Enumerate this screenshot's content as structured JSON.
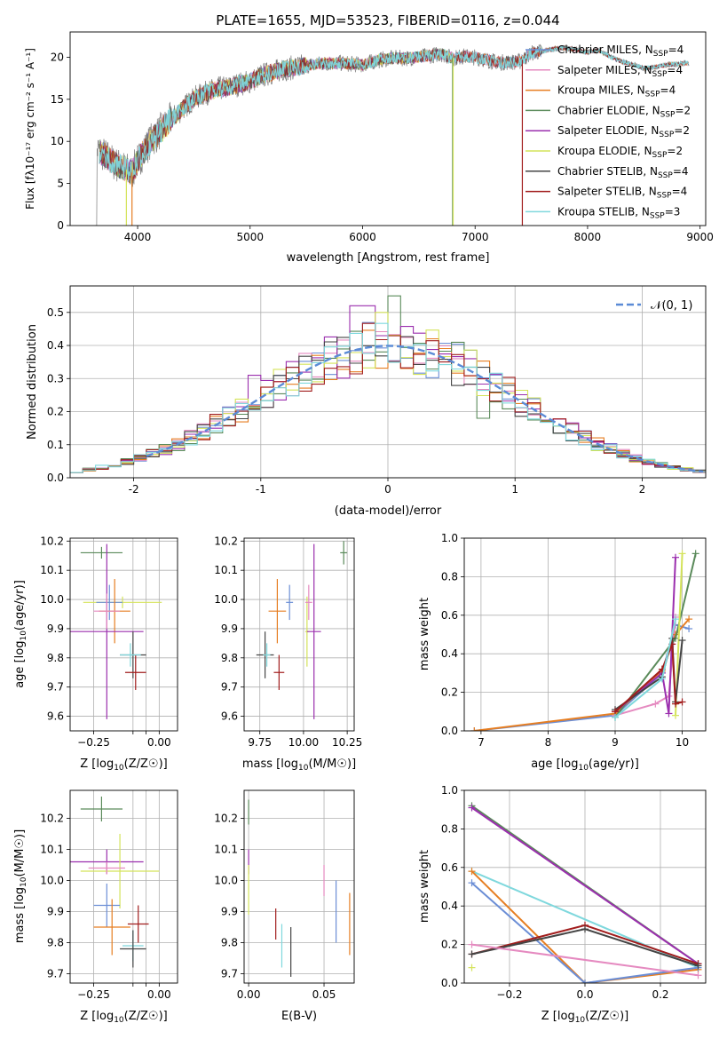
{
  "figure_title": "PLATE=1655, MJD=53523, FIBERID=0116, z=0.044",
  "palette": {
    "Chabrier MILES": "#6b8ed6",
    "Salpeter MILES": "#e58ac0",
    "Kroupa MILES": "#e67e22",
    "Chabrier ELODIE": "#5a8a5a",
    "Salpeter ELODIE": "#9b2fae",
    "Kroupa ELODIE": "#d4e35a",
    "Chabrier STELIB": "#444444",
    "Salpeter STELIB": "#a11d1d",
    "Kroupa STELIB": "#7fd8dd",
    "gaussian": "#5b8bd6",
    "grid": "#b0b0b0"
  },
  "chart_data": [
    {
      "id": "spectrum",
      "type": "line",
      "title": "PLATE=1655, MJD=53523, FIBERID=0116, z=0.044",
      "xlabel": "wavelength [Angstrom, rest frame]",
      "ylabel": "Flux [fλ10⁻¹⁷ erg cm⁻² s⁻¹ A⁻¹]",
      "xlim": [
        3400,
        9050
      ],
      "ylim": [
        0,
        23
      ],
      "xticks": [
        4000,
        5000,
        6000,
        7000,
        8000,
        9000
      ],
      "yticks": [
        0,
        5,
        10,
        15,
        20
      ],
      "grid": false,
      "legend_position": "right",
      "legend": [
        {
          "base": "Chabrier MILES, N",
          "sub": "SSP",
          "tail": "=4",
          "color": "#6b8ed6"
        },
        {
          "base": "Salpeter MILES, N",
          "sub": "SSP",
          "tail": "=4",
          "color": "#e58ac0"
        },
        {
          "base": "Kroupa MILES, N",
          "sub": "SSP",
          "tail": "=4",
          "color": "#e67e22"
        },
        {
          "base": "Chabrier ELODIE, N",
          "sub": "SSP",
          "tail": "=2",
          "color": "#5a8a5a"
        },
        {
          "base": "Salpeter ELODIE, N",
          "sub": "SSP",
          "tail": "=2",
          "color": "#9b2fae"
        },
        {
          "base": "Kroupa ELODIE, N",
          "sub": "SSP",
          "tail": "=2",
          "color": "#d4e35a"
        },
        {
          "base": "Chabrier STELIB, N",
          "sub": "SSP",
          "tail": "=4",
          "color": "#444444"
        },
        {
          "base": "Salpeter STELIB, N",
          "sub": "SSP",
          "tail": "=4",
          "color": "#a11d1d"
        },
        {
          "base": "Kroupa STELIB, N",
          "sub": "SSP",
          "tail": "=3",
          "color": "#7fd8dd"
        }
      ],
      "continuum": {
        "x": [
          3650,
          3720,
          3800,
          3880,
          3950,
          4000,
          4100,
          4200,
          4300,
          4400,
          4500,
          4600,
          4700,
          4800,
          4900,
          5000,
          5100,
          5200,
          5300,
          5400,
          5500,
          5600,
          5700,
          5800,
          5900,
          6000,
          6100,
          6200,
          6300,
          6400,
          6500,
          6600,
          6700,
          6800,
          6900,
          7000,
          7100,
          7200,
          7300,
          7400,
          7500,
          7600,
          7700,
          7800,
          7900,
          8000,
          8100,
          8200,
          8300,
          8400,
          8500,
          8600,
          8700,
          8800,
          8900
        ],
        "y": [
          9.0,
          8.2,
          7.3,
          6.8,
          6.3,
          7.6,
          9.8,
          11.2,
          12.6,
          13.9,
          15.1,
          15.7,
          16.2,
          16.4,
          16.8,
          17.1,
          17.8,
          18.2,
          18.6,
          18.8,
          19.0,
          19.2,
          19.3,
          19.3,
          19.2,
          19.1,
          19.5,
          19.8,
          19.9,
          19.9,
          20.0,
          20.2,
          20.4,
          19.9,
          20.1,
          20.0,
          19.7,
          19.4,
          19.4,
          19.5,
          20.5,
          20.7,
          21.0,
          21.1,
          20.9,
          20.6,
          20.8,
          20.1,
          19.5,
          19.1,
          18.7,
          18.8,
          19.1,
          19.2,
          19.3
        ]
      },
      "dropouts": [
        {
          "series": "Kroupa MILES",
          "wavelength": 3950
        },
        {
          "series": "Kroupa ELODIE",
          "wavelength": 3900
        },
        {
          "series": "Chabrier ELODIE",
          "wavelength": 6800
        },
        {
          "series": "Kroupa ELODIE",
          "wavelength": 6805
        },
        {
          "series": "Salpeter STELIB",
          "wavelength": 7420
        }
      ]
    },
    {
      "id": "residuals",
      "type": "line",
      "xlabel": "(data-model)/error",
      "ylabel": "Normed distribution",
      "xlim": [
        -2.5,
        2.5
      ],
      "ylim": [
        0,
        0.58
      ],
      "xticks": [
        -2,
        -1,
        0,
        1,
        2
      ],
      "yticks": [
        0.0,
        0.1,
        0.2,
        0.3,
        0.4,
        0.5
      ],
      "grid": true,
      "legend_position": "top-right",
      "legend": [
        {
          "label": "𝒩(0, 1)",
          "style": "dashed",
          "color": "#5b8bd6"
        }
      ],
      "bins": {
        "start": -2.5,
        "width": 0.1,
        "count": 50
      },
      "highlights": [
        {
          "series": "Salpeter ELODIE",
          "x": -0.2,
          "value": 0.52
        },
        {
          "series": "Chabrier ELODIE",
          "x": 0.05,
          "value": 0.55
        },
        {
          "series": "Kroupa ELODIE",
          "x": -0.05,
          "value": 0.5
        },
        {
          "series": "Salpeter ELODIE",
          "x": -1.05,
          "value": 0.31
        },
        {
          "series": "Chabrier ELODIE",
          "x": 0.75,
          "value": 0.18
        },
        {
          "series": "Salpeter ELODIE",
          "x": 1.25,
          "value": 0.17
        }
      ]
    },
    {
      "id": "age-vs-Z",
      "type": "scatter",
      "xlabel_base": "Z [log",
      "xlabel_sub": "10",
      "xlabel_tail": "(Z/Z☉)]",
      "ylabel_base": "age  [log",
      "ylabel_sub": "10",
      "ylabel_tail": "(age/yr)]",
      "xlim": [
        -0.34,
        0.07
      ],
      "ylim": [
        9.55,
        10.21
      ],
      "xticks": [
        "-0.25",
        "-0.10",
        "-0.05",
        "0.00"
      ],
      "xtick_values": [
        -0.25,
        -0.1,
        -0.05,
        0.0
      ],
      "xtick_labels": [
        "−0.25",
        "",
        "",
        "0.00"
      ],
      "yticks": [
        9.6,
        9.7,
        9.8,
        9.9,
        10.0,
        10.1,
        10.2
      ],
      "grid": true,
      "points": [
        {
          "series": "Chabrier ELODIE",
          "x": -0.22,
          "y": 10.16,
          "xerr": 0.08,
          "yerr": 0.02
        },
        {
          "series": "Kroupa ELODIE",
          "x": -0.14,
          "y": 9.99,
          "xerr": 0.15,
          "yerr": 0.02
        },
        {
          "series": "Chabrier MILES",
          "x": -0.19,
          "y": 9.99,
          "xerr": 0.05,
          "yerr": 0.06
        },
        {
          "series": "Kroupa MILES",
          "x": -0.17,
          "y": 9.96,
          "xerr": 0.06,
          "yerr": 0.11
        },
        {
          "series": "Salpeter ELODIE",
          "x": -0.2,
          "y": 9.89,
          "xerr": 0.14,
          "yerr": 0.3
        },
        {
          "series": "Chabrier STELIB",
          "x": -0.1,
          "y": 9.81,
          "xerr": 0.05,
          "yerr": 0.08
        },
        {
          "series": "Salpeter STELIB",
          "x": -0.09,
          "y": 9.75,
          "xerr": 0.04,
          "yerr": 0.06
        },
        {
          "series": "Kroupa STELIB",
          "x": -0.11,
          "y": 9.81,
          "xerr": 0.04,
          "yerr": 0.04
        },
        {
          "series": "Salpeter MILES",
          "x": -0.2,
          "y": 9.96,
          "xerr": 0.05,
          "yerr": 0.06
        }
      ]
    },
    {
      "id": "age-vs-mass",
      "type": "scatter",
      "xlabel_base": "mass [log",
      "xlabel_sub": "10",
      "xlabel_tail": "(M/M☉)]",
      "xlim": [
        9.66,
        10.29
      ],
      "ylim": [
        9.55,
        10.21
      ],
      "xticks": [
        9.75,
        10.0,
        10.25
      ],
      "xtick_labels": [
        "9.75",
        "10.00",
        "10.25"
      ],
      "yticks": [
        9.6,
        9.7,
        9.8,
        9.9,
        10.0,
        10.1,
        10.2
      ],
      "grid": true,
      "points": [
        {
          "series": "Chabrier ELODIE",
          "x": 10.23,
          "y": 10.16,
          "xerr": 0.02,
          "yerr": 0.04
        },
        {
          "series": "Kroupa ELODIE",
          "x": 10.02,
          "y": 9.89,
          "xerr": 0.01,
          "yerr": 0.12
        },
        {
          "series": "Chabrier MILES",
          "x": 9.92,
          "y": 9.99,
          "xerr": 0.02,
          "yerr": 0.06
        },
        {
          "series": "Kroupa MILES",
          "x": 9.85,
          "y": 9.96,
          "xerr": 0.05,
          "yerr": 0.11
        },
        {
          "series": "Salpeter ELODIE",
          "x": 10.06,
          "y": 9.89,
          "xerr": 0.04,
          "yerr": 0.3
        },
        {
          "series": "Chabrier STELIB",
          "x": 9.78,
          "y": 9.81,
          "xerr": 0.05,
          "yerr": 0.08
        },
        {
          "series": "Salpeter STELIB",
          "x": 9.86,
          "y": 9.75,
          "xerr": 0.03,
          "yerr": 0.06
        },
        {
          "series": "Kroupa STELIB",
          "x": 9.79,
          "y": 9.81,
          "xerr": 0.02,
          "yerr": 0.04
        },
        {
          "series": "Salpeter MILES",
          "x": 10.03,
          "y": 9.99,
          "xerr": 0.02,
          "yerr": 0.06
        }
      ]
    },
    {
      "id": "weight-vs-age",
      "type": "line",
      "xlabel_base": "age  [log",
      "xlabel_sub": "10",
      "xlabel_tail": "(age/yr)]",
      "ylabel": "mass weight",
      "xlim": [
        6.75,
        10.35
      ],
      "ylim": [
        0,
        1.0
      ],
      "xticks": [
        7,
        8,
        9,
        10
      ],
      "yticks": [
        0.0,
        0.2,
        0.4,
        0.6,
        0.8,
        1.0
      ],
      "grid": true,
      "series": [
        {
          "name": "Chabrier MILES",
          "x": [
            6.9,
            9.0,
            9.7,
            9.9,
            10.1
          ],
          "y": [
            0.0,
            0.08,
            0.3,
            0.55,
            0.53
          ]
        },
        {
          "name": "Salpeter MILES",
          "x": [
            9.0,
            9.6,
            9.8,
            9.9
          ],
          "y": [
            0.08,
            0.14,
            0.18,
            0.59
          ]
        },
        {
          "name": "Kroupa MILES",
          "x": [
            6.9,
            9.0,
            9.7,
            9.9,
            10.1
          ],
          "y": [
            0.0,
            0.09,
            0.31,
            0.5,
            0.58
          ]
        },
        {
          "name": "Chabrier ELODIE",
          "x": [
            9.0,
            9.9,
            10.2
          ],
          "y": [
            0.07,
            0.48,
            0.92
          ]
        },
        {
          "name": "Salpeter ELODIE",
          "x": [
            9.0,
            9.7,
            9.8,
            9.9
          ],
          "y": [
            0.1,
            0.3,
            0.09,
            0.9
          ]
        },
        {
          "name": "Kroupa ELODIE",
          "x": [
            9.9,
            10.0
          ],
          "y": [
            0.08,
            0.92
          ]
        },
        {
          "name": "Chabrier STELIB",
          "x": [
            9.0,
            9.7,
            9.85,
            9.9,
            10.0
          ],
          "y": [
            0.11,
            0.28,
            0.48,
            0.15,
            0.47
          ]
        },
        {
          "name": "Salpeter STELIB",
          "x": [
            9.0,
            9.7,
            9.85,
            9.9,
            10.0
          ],
          "y": [
            0.1,
            0.32,
            0.45,
            0.14,
            0.15
          ]
        },
        {
          "name": "Kroupa STELIB",
          "x": [
            9.0,
            9.7,
            9.9
          ],
          "y": [
            0.07,
            0.27,
            0.58
          ]
        }
      ]
    },
    {
      "id": "mass-vs-Z",
      "type": "scatter",
      "xlabel_base": "Z [log",
      "xlabel_sub": "10",
      "xlabel_tail": "(Z/Z☉)]",
      "ylabel_base": "mass [log",
      "ylabel_sub": "10",
      "ylabel_tail": "(M/M☉)]",
      "xlim": [
        -0.34,
        0.07
      ],
      "ylim": [
        9.67,
        10.29
      ],
      "xticks": [
        -0.25,
        -0.1,
        -0.05,
        0.0
      ],
      "xtick_labels": [
        "−0.25",
        "",
        "",
        "0.00"
      ],
      "yticks": [
        9.7,
        9.8,
        9.9,
        10.0,
        10.1,
        10.2
      ],
      "grid": true,
      "points": [
        {
          "series": "Chabrier ELODIE",
          "x": -0.22,
          "y": 10.23,
          "xerr": 0.08,
          "yerr": 0.04
        },
        {
          "series": "Salpeter ELODIE",
          "x": -0.2,
          "y": 10.06,
          "xerr": 0.14,
          "yerr": 0.04
        },
        {
          "series": "Kroupa ELODIE",
          "x": -0.15,
          "y": 10.03,
          "xerr": 0.15,
          "yerr": 0.12
        },
        {
          "series": "Salpeter MILES",
          "x": -0.2,
          "y": 10.04,
          "xerr": 0.07,
          "yerr": 0.02
        },
        {
          "series": "Chabrier MILES",
          "x": -0.2,
          "y": 9.92,
          "xerr": 0.05,
          "yerr": 0.07
        },
        {
          "series": "Salpeter STELIB",
          "x": -0.08,
          "y": 9.86,
          "xerr": 0.04,
          "yerr": 0.06
        },
        {
          "series": "Kroupa MILES",
          "x": -0.18,
          "y": 9.85,
          "xerr": 0.07,
          "yerr": 0.09
        },
        {
          "series": "Kroupa STELIB",
          "x": -0.1,
          "y": 9.79,
          "xerr": 0.04,
          "yerr": 0.05
        },
        {
          "series": "Chabrier STELIB",
          "x": -0.1,
          "y": 9.78,
          "xerr": 0.05,
          "yerr": 0.06
        }
      ]
    },
    {
      "id": "mass-vs-ebv",
      "type": "scatter",
      "xlabel": "E(B-V)",
      "xlim": [
        -0.003,
        0.07
      ],
      "ylim": [
        9.67,
        10.29
      ],
      "xticks": [
        0.0,
        0.05
      ],
      "xtick_labels": [
        "0.00",
        "0.05"
      ],
      "yticks": [
        9.7,
        9.8,
        9.9,
        10.0,
        10.1,
        10.2
      ],
      "grid": true,
      "points": [
        {
          "series": "Chabrier ELODIE",
          "x": 0.0,
          "y": 10.22,
          "xerr": 0.0,
          "yerr": 0.04
        },
        {
          "series": "Salpeter ELODIE",
          "x": 0.0,
          "y": 10.06,
          "xerr": 0.0,
          "yerr": 0.04
        },
        {
          "series": "Kroupa ELODIE",
          "x": 0.0,
          "y": 9.97,
          "xerr": 0.0,
          "yerr": 0.08
        },
        {
          "series": "Salpeter STELIB",
          "x": 0.018,
          "y": 9.86,
          "xerr": 0.0,
          "yerr": 0.05
        },
        {
          "series": "Kroupa STELIB",
          "x": 0.022,
          "y": 9.79,
          "xerr": 0.0,
          "yerr": 0.07
        },
        {
          "series": "Chabrier STELIB",
          "x": 0.028,
          "y": 9.77,
          "xerr": 0.0,
          "yerr": 0.08
        },
        {
          "series": "Salpeter MILES",
          "x": 0.05,
          "y": 10.0,
          "xerr": 0.0,
          "yerr": 0.05
        },
        {
          "series": "Chabrier MILES",
          "x": 0.058,
          "y": 9.9,
          "xerr": 0.0,
          "yerr": 0.1
        },
        {
          "series": "Kroupa MILES",
          "x": 0.067,
          "y": 9.86,
          "xerr": 0.0,
          "yerr": 0.1
        }
      ]
    },
    {
      "id": "weight-vs-Z",
      "type": "line",
      "xlabel_base": "Z [log",
      "xlabel_sub": "10",
      "xlabel_tail": "(Z/Z☉)]",
      "ylabel": "mass weight",
      "xlim": [
        -0.32,
        0.32
      ],
      "ylim": [
        0,
        1.0
      ],
      "xticks": [
        -0.2,
        0.0,
        0.2
      ],
      "xtick_labels": [
        "−0.2",
        "0.0",
        "0.2"
      ],
      "yticks": [
        0.0,
        0.2,
        0.4,
        0.6,
        0.8,
        1.0
      ],
      "grid": true,
      "series": [
        {
          "name": "Chabrier ELODIE",
          "x": [
            -0.3,
            0.3
          ],
          "y": [
            0.92,
            0.1
          ]
        },
        {
          "name": "Salpeter ELODIE",
          "x": [
            -0.3,
            0.3
          ],
          "y": [
            0.91,
            0.1
          ]
        },
        {
          "name": "Kroupa STELIB",
          "x": [
            -0.3,
            0.3
          ],
          "y": [
            0.58,
            0.08
          ]
        },
        {
          "name": "Kroupa MILES",
          "x": [
            -0.3,
            0.0,
            0.3
          ],
          "y": [
            0.58,
            0.0,
            0.07
          ]
        },
        {
          "name": "Chabrier MILES",
          "x": [
            -0.3,
            0.0,
            0.3
          ],
          "y": [
            0.52,
            0.0,
            0.08
          ]
        },
        {
          "name": "Salpeter STELIB",
          "x": [
            -0.3,
            0.0,
            0.3
          ],
          "y": [
            0.15,
            0.3,
            0.1
          ]
        },
        {
          "name": "Chabrier STELIB",
          "x": [
            -0.3,
            0.0,
            0.3
          ],
          "y": [
            0.15,
            0.28,
            0.09
          ]
        },
        {
          "name": "Salpeter MILES",
          "x": [
            -0.3,
            0.3
          ],
          "y": [
            0.2,
            0.04
          ]
        },
        {
          "name": "Kroupa ELODIE",
          "x": [
            -0.3
          ],
          "y": [
            0.08
          ]
        }
      ]
    }
  ]
}
